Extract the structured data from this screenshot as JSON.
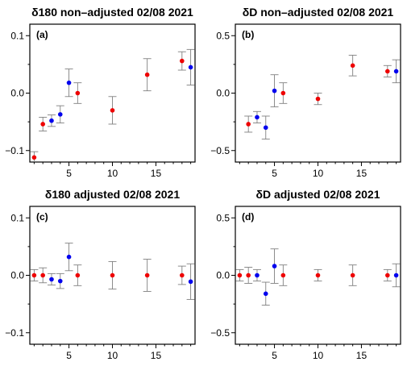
{
  "colors": {
    "blue": "#0000ee",
    "red": "#ee0000",
    "errorbar": "#808080",
    "frame": "#000000"
  },
  "chart_data": [
    {
      "type": "scatter",
      "panel_label": "(a)",
      "title": "δ180 non–adjusted 02/08 2021",
      "xlim": [
        0.5,
        19.5
      ],
      "ylim": [
        -0.12,
        0.12
      ],
      "xticks": [
        5,
        10,
        15
      ],
      "yticks": [
        -0.1,
        0.0,
        0.1
      ],
      "ytick_labels": [
        "−0.1",
        "0.0",
        "0.1"
      ],
      "error_bars": true,
      "series": [
        {
          "color": "blue",
          "x": [
            3,
            4,
            5,
            19
          ],
          "y": [
            -0.048,
            -0.037,
            0.018,
            0.045
          ],
          "err": [
            0.01,
            0.015,
            0.024,
            0.031
          ]
        },
        {
          "color": "red",
          "x": [
            1,
            2,
            6,
            10,
            14,
            18
          ],
          "y": [
            -0.112,
            -0.054,
            0.0,
            -0.03,
            0.032,
            0.056
          ],
          "err": [
            0.01,
            0.012,
            0.018,
            0.024,
            0.028,
            0.016
          ]
        }
      ]
    },
    {
      "type": "scatter",
      "panel_label": "(b)",
      "title": "δD non–adjusted 02/08 2021",
      "xlim": [
        0.5,
        19.5
      ],
      "ylim": [
        -0.6,
        0.6
      ],
      "xticks": [
        5,
        10,
        15
      ],
      "yticks": [
        -0.5,
        0.0,
        0.5
      ],
      "ytick_labels": [
        "−0.5",
        "0.0",
        "0.5"
      ],
      "error_bars": true,
      "series": [
        {
          "color": "blue",
          "x": [
            3,
            4,
            5,
            19
          ],
          "y": [
            -0.21,
            -0.3,
            0.02,
            0.19
          ],
          "err": [
            0.05,
            0.1,
            0.14,
            0.1
          ]
        },
        {
          "color": "red",
          "x": [
            2,
            6,
            10,
            14,
            18
          ],
          "y": [
            -0.27,
            0.0,
            -0.05,
            0.24,
            0.19
          ],
          "err": [
            0.07,
            0.09,
            0.05,
            0.09,
            0.05
          ]
        }
      ]
    },
    {
      "type": "scatter",
      "panel_label": "(c)",
      "title": "δ180 adjusted 02/08 2021",
      "xlim": [
        0.5,
        19.5
      ],
      "ylim": [
        -0.12,
        0.12
      ],
      "xticks": [
        5,
        10,
        15
      ],
      "yticks": [
        -0.1,
        0.0,
        0.1
      ],
      "ytick_labels": [
        "−0.1",
        "0.0",
        "0.1"
      ],
      "error_bars": true,
      "series": [
        {
          "color": "blue",
          "x": [
            3,
            4,
            5,
            19
          ],
          "y": [
            -0.007,
            -0.01,
            0.032,
            -0.011
          ],
          "err": [
            0.01,
            0.013,
            0.024,
            0.031
          ]
        },
        {
          "color": "red",
          "x": [
            1,
            2,
            6,
            10,
            14,
            18
          ],
          "y": [
            0.0,
            0.0,
            0.0,
            0.0,
            0.0,
            0.0
          ],
          "err": [
            0.01,
            0.013,
            0.018,
            0.024,
            0.028,
            0.016
          ]
        }
      ]
    },
    {
      "type": "scatter",
      "panel_label": "(d)",
      "title": "δD adjusted 02/08 2021",
      "xlim": [
        0.5,
        19.5
      ],
      "ylim": [
        -0.6,
        0.6
      ],
      "xticks": [
        5,
        10,
        15
      ],
      "yticks": [
        -0.5,
        0.0,
        0.5
      ],
      "ytick_labels": [
        "−0.5",
        "0.0",
        "0.5"
      ],
      "error_bars": true,
      "series": [
        {
          "color": "blue",
          "x": [
            3,
            4,
            5,
            19
          ],
          "y": [
            0.0,
            -0.16,
            0.08,
            0.0
          ],
          "err": [
            0.05,
            0.1,
            0.15,
            0.1
          ]
        },
        {
          "color": "red",
          "x": [
            1,
            2,
            6,
            10,
            14,
            18
          ],
          "y": [
            0.0,
            0.0,
            0.0,
            0.0,
            0.0,
            0.0
          ],
          "err": [
            0.05,
            0.07,
            0.09,
            0.05,
            0.09,
            0.05
          ]
        }
      ]
    }
  ]
}
